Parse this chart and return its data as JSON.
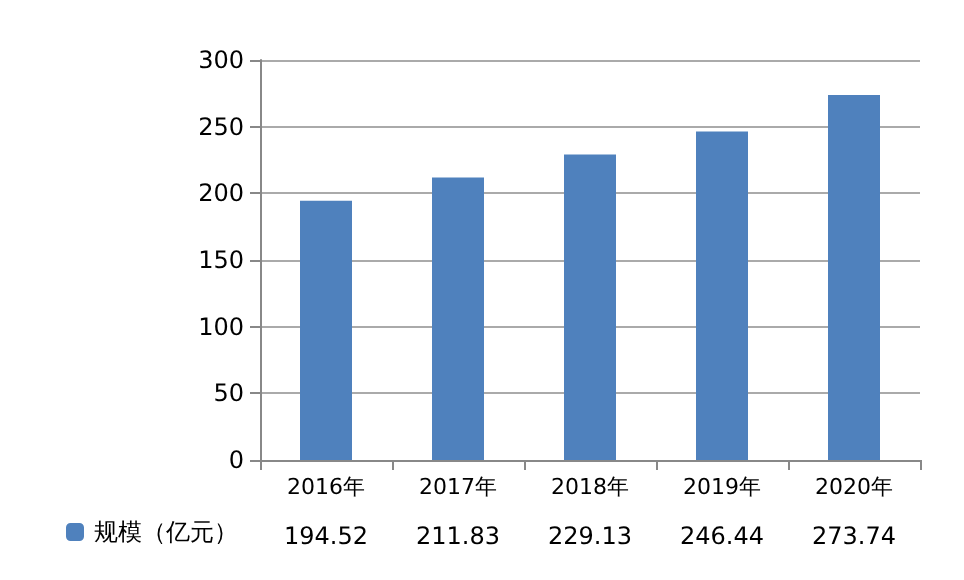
{
  "chart_data": {
    "type": "bar",
    "categories": [
      "2016年",
      "2017年",
      "2018年",
      "2019年",
      "2020年"
    ],
    "series": [
      {
        "name": "规模（亿元）",
        "color": "#4f81bd",
        "values": [
          194.52,
          211.83,
          229.13,
          246.44,
          273.74
        ]
      }
    ],
    "ylim": [
      0,
      300
    ],
    "yticks": [
      0,
      50,
      100,
      150,
      200,
      250,
      300
    ],
    "grid": "y",
    "legend": "bottom left",
    "data_labels": true
  }
}
